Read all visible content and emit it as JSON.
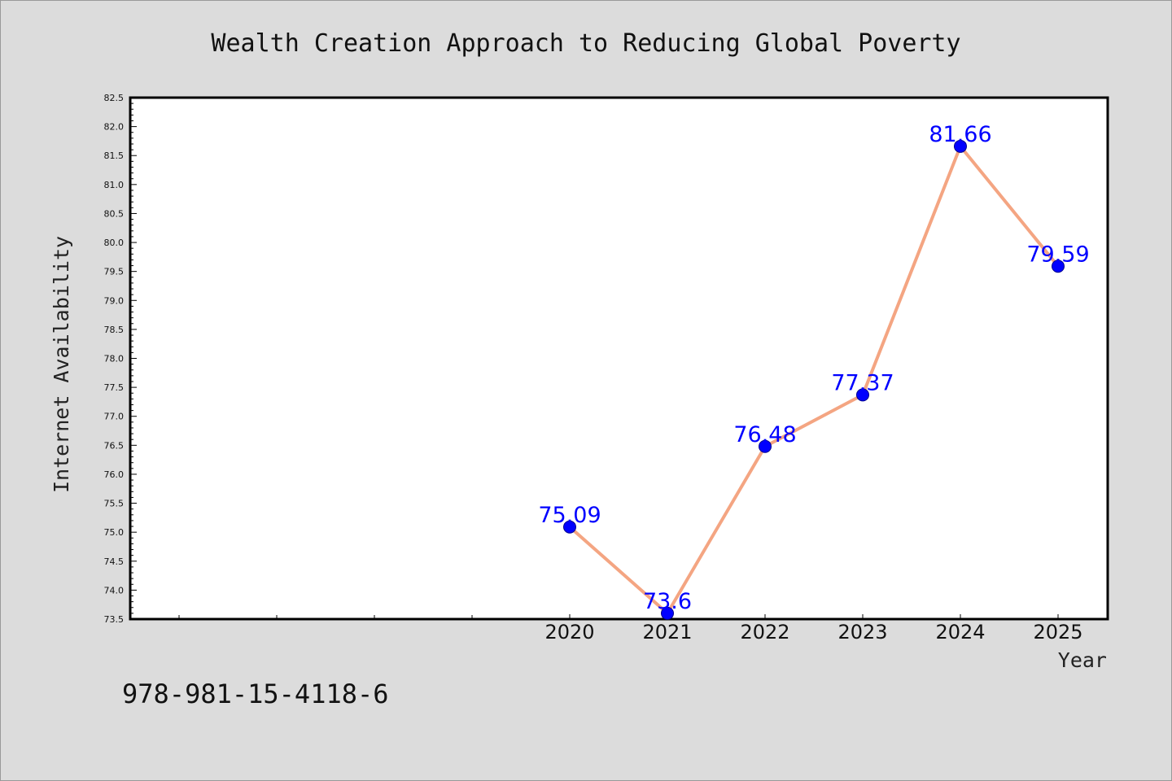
{
  "chart_data": {
    "type": "line",
    "title": "Wealth Creation Approach to Reducing Global Poverty",
    "xlabel": "Year",
    "ylabel": "Internet Availability",
    "categories": [
      "2020",
      "2021",
      "2022",
      "2023",
      "2024",
      "2025"
    ],
    "series": [
      {
        "values": [
          75.09,
          73.6,
          76.48,
          77.37,
          81.66,
          79.59
        ],
        "labels": [
          "75.09",
          "73.6",
          "76.48",
          "77.37",
          "81.66",
          "79.59"
        ],
        "line_color": "#f4a582",
        "marker_color": "#0000ff"
      }
    ],
    "ylim": [
      73.5,
      82.5
    ],
    "yticks": [
      "73.5",
      "74.0",
      "74.5",
      "75.0",
      "75.5",
      "76.0",
      "76.5",
      "77.0",
      "77.5",
      "78.0",
      "78.5",
      "79.0",
      "79.5",
      "80.0",
      "80.5",
      "81.0",
      "81.5",
      "82.0",
      "82.5"
    ],
    "grid": false,
    "legend": "none"
  },
  "footer": {
    "code": "978-981-15-4118-6"
  }
}
